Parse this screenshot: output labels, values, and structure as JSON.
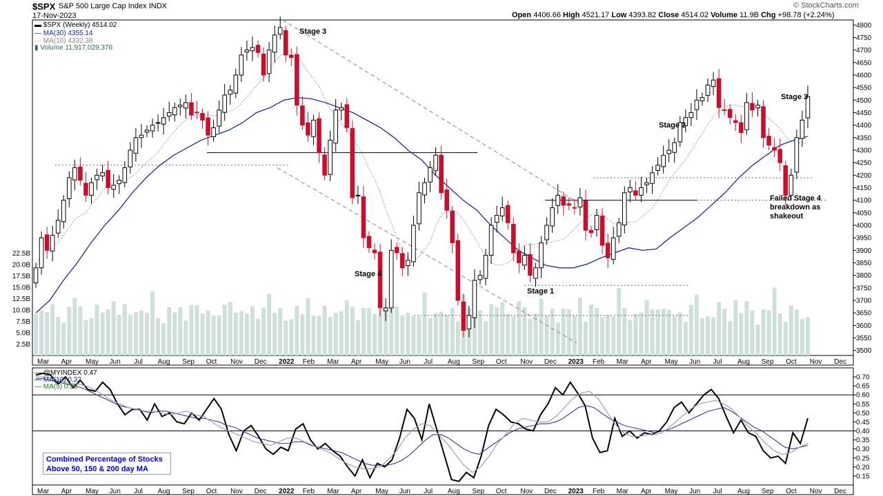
{
  "header": {
    "ticker": "$SPX",
    "name": "S&P 500 Large Cap Index",
    "exchange": "INDX",
    "date": "17-Nov-2023",
    "watermark": "© StockCharts.com",
    "ohlc": {
      "open_label": "Open",
      "open": "4406.66",
      "high_label": "High",
      "high": "4521.17",
      "low_label": "Low",
      "low": "4393.82",
      "close_label": "Close",
      "close": "4514.02",
      "volume_label": "Volume",
      "volume": "11.9B",
      "chg_label": "Chg",
      "chg": "+98.78 (+2.24%)"
    }
  },
  "legend": {
    "price": "$SPX (Weekly) 4514.02",
    "ma30": "MA(30) 4355.14",
    "ma10": "MA(10) 4332.38",
    "volume": "Volume 11,917,029,376"
  },
  "lower_legend": {
    "index": "@MYINDEX 0.47",
    "ma10": "MA(10) 0.32",
    "ma5": "MA(5) 0.33"
  },
  "annotations": {
    "stage3_left": "Stage 3",
    "stage4": "Stage 4",
    "stage1": "Stage 1",
    "stage2": "Stage 2",
    "stage3_right": "Stage 3",
    "failed1": "Failed Stage 4",
    "failed2": "breakdown as",
    "failed3": "shakeout",
    "box1": "Combined Percentage of Stocks",
    "box2": "Above 50, 150 & 200 day MA"
  },
  "colors": {
    "up": "#000000",
    "down": "#c8102e",
    "ma30": "#1c2a8c",
    "ma10": "#9a9a9a",
    "volume": "#cfe0d8",
    "indicator": "#000000",
    "ind_ma10": "#1c2a8c",
    "ind_ma5": "#a0a0a0"
  },
  "chart_data": [
    {
      "type": "candlestick",
      "title": "$SPX S&P 500 Large Cap Index INDX",
      "frequency": "weekly",
      "ylim": [
        3480,
        4820
      ],
      "y_ticks": [
        3500,
        3550,
        3600,
        3650,
        3700,
        3750,
        3800,
        3850,
        3900,
        3950,
        4000,
        4050,
        4100,
        4150,
        4200,
        4250,
        4300,
        4350,
        4400,
        4450,
        4500,
        4550,
        4600,
        4650,
        4700,
        4750,
        4800
      ],
      "x_labels": [
        "Mar",
        "Apr",
        "May",
        "Jun",
        "Jul",
        "Aug",
        "Sep",
        "Oct",
        "Nov",
        "Dec",
        "2022",
        "Feb",
        "Mar",
        "Apr",
        "May",
        "Jun",
        "Jul",
        "Aug",
        "Sep",
        "Oct",
        "Nov",
        "Dec",
        "2023",
        "Feb",
        "Mar",
        "Apr",
        "May",
        "Jun",
        "Jul",
        "Aug",
        "Sep",
        "Oct",
        "Nov",
        "Dec"
      ],
      "x_label_weeks": [
        0,
        4.3,
        8.7,
        13,
        17.4,
        21.7,
        26.1,
        30.4,
        34.8,
        39.1,
        43.5,
        47.8,
        52.2,
        56.5,
        60.9,
        65.2,
        69.6,
        73.9,
        78.3,
        82.6,
        87,
        91.3,
        95.6,
        100,
        104.3,
        108.7,
        113,
        117.4,
        121.7,
        126.1,
        130.4,
        134.8,
        139.1,
        143.5
      ],
      "closes": [
        3830,
        3950,
        3900,
        3960,
        4020,
        4100,
        4190,
        4230,
        4180,
        4120,
        4170,
        4200,
        4210,
        4150,
        4160,
        4180,
        4230,
        4300,
        4350,
        4360,
        4380,
        4400,
        4410,
        4430,
        4450,
        4470,
        4480,
        4490,
        4440,
        4450,
        4420,
        4360,
        4390,
        4460,
        4520,
        4540,
        4600,
        4680,
        4700,
        4710,
        4690,
        4600,
        4700,
        4760,
        4790,
        4680,
        4670,
        4480,
        4400,
        4360,
        4420,
        4290,
        4200,
        4340,
        4460,
        4470,
        4390,
        4110,
        4120,
        3950,
        3910,
        3890,
        3670,
        3670,
        3900,
        3890,
        3830,
        3860,
        4000,
        4130,
        4170,
        4230,
        4280,
        4130,
        4060,
        3930,
        3700,
        3580,
        3640,
        3780,
        3800,
        3880,
        4000,
        4040,
        4070,
        4010,
        3890,
        3850,
        3880,
        3800,
        3830,
        3930,
        4000,
        4070,
        4120,
        4080,
        4080,
        4070,
        4110,
        3980,
        3970,
        4040,
        3920,
        3870,
        3950,
        4010,
        4130,
        4150,
        4120,
        4150,
        4170,
        4210,
        4240,
        4280,
        4300,
        4330,
        4410,
        4430,
        4450,
        4500,
        4510,
        4560,
        4580,
        4470,
        4460,
        4430,
        4410,
        4370,
        4490,
        4460,
        4480,
        4350,
        4320,
        4300,
        4250,
        4120,
        4200,
        4350,
        4420,
        4514
      ],
      "ma30": {
        "start": 430,
        "values": [
          3650,
          3700,
          3780,
          3850,
          3930,
          4000,
          4060,
          4130,
          4190,
          4240,
          4280,
          4310,
          4340,
          4360,
          4380,
          4410,
          4450,
          4470,
          4500,
          4510,
          4505,
          4490,
          4470,
          4450,
          4420,
          4390,
          4350,
          4300,
          4260,
          4200,
          4150,
          4100,
          4060,
          4000,
          3950,
          3900,
          3870,
          3840,
          3830,
          3830,
          3845,
          3870,
          3890,
          3910,
          3900,
          3905,
          3950,
          3990,
          4030,
          4080,
          4130,
          4190,
          4240,
          4280,
          4320,
          4340,
          4355
        ]
      },
      "volume_ticks": [
        "2.5B",
        "5.0B",
        "7.5B",
        "10.0B",
        "12.5B",
        "15.0B",
        "17.5B",
        "20.0B",
        "22.5B"
      ],
      "annotations": [
        "Stage 3",
        "Stage 4",
        "Stage 1",
        "Stage 2",
        "Stage 3",
        "Failed Stage 4 breakdown as shakeout"
      ]
    },
    {
      "type": "line",
      "title": "@MYINDEX",
      "ylim": [
        0.1,
        0.75
      ],
      "y_ticks": [
        0.15,
        0.2,
        0.25,
        0.3,
        0.35,
        0.4,
        0.45,
        0.5,
        0.55,
        0.6,
        0.65,
        0.7
      ],
      "reference_lines": [
        0.4,
        0.6
      ],
      "series": [
        {
          "name": "@MYINDEX",
          "values": [
            0.71,
            0.72,
            0.71,
            0.66,
            0.7,
            0.64,
            0.68,
            0.63,
            0.62,
            0.67,
            0.63,
            0.55,
            0.49,
            0.52,
            0.52,
            0.46,
            0.55,
            0.48,
            0.5,
            0.45,
            0.44,
            0.5,
            0.46,
            0.52,
            0.58,
            0.52,
            0.38,
            0.29,
            0.4,
            0.43,
            0.37,
            0.3,
            0.27,
            0.31,
            0.29,
            0.41,
            0.44,
            0.35,
            0.3,
            0.33,
            0.29,
            0.26,
            0.2,
            0.15,
            0.24,
            0.14,
            0.22,
            0.2,
            0.24,
            0.36,
            0.52,
            0.47,
            0.35,
            0.55,
            0.41,
            0.27,
            0.13,
            0.12,
            0.17,
            0.14,
            0.26,
            0.43,
            0.52,
            0.49,
            0.45,
            0.44,
            0.41,
            0.4,
            0.49,
            0.55,
            0.64,
            0.6,
            0.67,
            0.61,
            0.54,
            0.36,
            0.28,
            0.29,
            0.47,
            0.37,
            0.4,
            0.36,
            0.39,
            0.38,
            0.4,
            0.45,
            0.53,
            0.56,
            0.5,
            0.55,
            0.6,
            0.63,
            0.58,
            0.48,
            0.39,
            0.46,
            0.39,
            0.37,
            0.29,
            0.25,
            0.26,
            0.22,
            0.39,
            0.33,
            0.47
          ]
        },
        {
          "name": "MA(10)",
          "values": [
            0.69,
            0.69,
            0.68,
            0.67,
            0.66,
            0.65,
            0.64,
            0.62,
            0.6,
            0.58,
            0.56,
            0.54,
            0.53,
            0.52,
            0.51,
            0.5,
            0.51,
            0.51,
            0.5,
            0.49,
            0.48,
            0.47,
            0.47,
            0.46,
            0.45,
            0.43,
            0.42,
            0.4,
            0.38,
            0.36,
            0.35,
            0.34,
            0.33,
            0.33,
            0.34,
            0.34,
            0.32,
            0.31,
            0.3,
            0.29,
            0.28,
            0.26,
            0.24,
            0.22,
            0.21,
            0.21,
            0.21,
            0.22,
            0.24,
            0.27,
            0.31,
            0.35,
            0.38,
            0.38,
            0.36,
            0.33,
            0.3,
            0.28,
            0.27,
            0.3,
            0.33,
            0.36,
            0.39,
            0.41,
            0.42,
            0.43,
            0.44,
            0.44,
            0.45,
            0.47,
            0.5,
            0.53,
            0.54,
            0.53,
            0.5,
            0.47,
            0.45,
            0.43,
            0.42,
            0.41,
            0.4,
            0.39,
            0.4,
            0.41,
            0.43,
            0.45,
            0.47,
            0.49,
            0.51,
            0.52,
            0.53,
            0.51,
            0.48,
            0.45,
            0.42,
            0.4,
            0.37,
            0.34,
            0.31,
            0.3,
            0.31,
            0.32
          ]
        },
        {
          "name": "MA(5)",
          "values": [
            0.7,
            0.7,
            0.69,
            0.68,
            0.66,
            0.66,
            0.65,
            0.63,
            0.6,
            0.57,
            0.55,
            0.53,
            0.52,
            0.51,
            0.51,
            0.5,
            0.49,
            0.5,
            0.51,
            0.49,
            0.48,
            0.45,
            0.42,
            0.4,
            0.38,
            0.36,
            0.34,
            0.33,
            0.32,
            0.34,
            0.36,
            0.36,
            0.34,
            0.32,
            0.3,
            0.28,
            0.25,
            0.22,
            0.2,
            0.19,
            0.19,
            0.2,
            0.24,
            0.29,
            0.36,
            0.41,
            0.44,
            0.43,
            0.38,
            0.33,
            0.27,
            0.21,
            0.17,
            0.2,
            0.26,
            0.33,
            0.38,
            0.44,
            0.47,
            0.46,
            0.45,
            0.45,
            0.48,
            0.53,
            0.58,
            0.61,
            0.62,
            0.58,
            0.51,
            0.44,
            0.39,
            0.37,
            0.37,
            0.38,
            0.38,
            0.4,
            0.44,
            0.48,
            0.52,
            0.55,
            0.56,
            0.57,
            0.55,
            0.52,
            0.47,
            0.42,
            0.38,
            0.33,
            0.29,
            0.27,
            0.28,
            0.31,
            0.33
          ]
        }
      ]
    }
  ]
}
